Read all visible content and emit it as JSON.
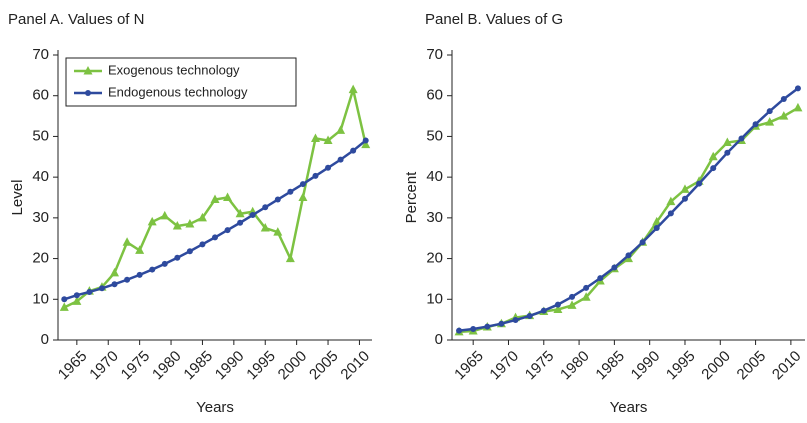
{
  "chart_data": [
    {
      "type": "line",
      "title": "Panel A. Values of N",
      "xlabel": "Years",
      "ylabel": "Level",
      "x": [
        1963,
        1965,
        1967,
        1969,
        1971,
        1973,
        1975,
        1977,
        1979,
        1981,
        1983,
        1985,
        1987,
        1989,
        1991,
        1993,
        1995,
        1997,
        1999,
        2001,
        2003,
        2005,
        2007,
        2009,
        2011
      ],
      "series": [
        {
          "name": "Exogenous technology",
          "color": "#7dc242",
          "marker": "triangle",
          "values": [
            8,
            9.5,
            12,
            13,
            16.5,
            24,
            22,
            29,
            30.5,
            28,
            28.5,
            30,
            34.5,
            35,
            31,
            31.5,
            27.5,
            26.5,
            20,
            35,
            49.5,
            49,
            51.5,
            61.5,
            48
          ]
        },
        {
          "name": "Endogenous technology",
          "color": "#2e4a9e",
          "marker": "circle",
          "values": [
            10,
            11,
            11.8,
            12.7,
            13.7,
            14.8,
            16,
            17.3,
            18.7,
            20.2,
            21.8,
            23.5,
            25.2,
            27,
            28.8,
            30.7,
            32.6,
            34.5,
            36.4,
            38.3,
            40.3,
            42.3,
            44.3,
            46.5,
            49
          ]
        }
      ],
      "xlim": [
        1962,
        2012
      ],
      "xticks": [
        1965,
        1970,
        1975,
        1980,
        1985,
        1990,
        1995,
        2000,
        2005,
        2010
      ],
      "ylim": [
        0,
        70
      ],
      "yticks": [
        0,
        10,
        20,
        30,
        40,
        50,
        60,
        70
      ],
      "legend": "upper left"
    },
    {
      "type": "line",
      "title": "Panel B. Values of G",
      "xlabel": "Years",
      "ylabel": "Percent",
      "x": [
        1963,
        1965,
        1967,
        1969,
        1971,
        1973,
        1975,
        1977,
        1979,
        1981,
        1983,
        1985,
        1987,
        1989,
        1991,
        1993,
        1995,
        1997,
        1999,
        2001,
        2003,
        2005,
        2007,
        2009,
        2011
      ],
      "series": [
        {
          "name": "Exogenous technology",
          "color": "#7dc242",
          "marker": "triangle",
          "values": [
            2,
            2.2,
            3.2,
            4,
            5.5,
            6,
            7,
            7.5,
            8.5,
            10.5,
            14.5,
            17.5,
            20,
            24,
            29,
            34,
            37,
            39,
            45,
            48.5,
            49,
            52.5,
            53.5,
            55,
            57
          ]
        },
        {
          "name": "Endogenous technology",
          "color": "#2e4a9e",
          "marker": "circle",
          "values": [
            2.3,
            2.7,
            3.3,
            4,
            4.9,
            5.9,
            7.2,
            8.7,
            10.6,
            12.8,
            15.2,
            17.8,
            20.8,
            24,
            27.5,
            31.1,
            34.7,
            38.4,
            42.2,
            46,
            49.5,
            53,
            56.2,
            59.2,
            61.8
          ]
        }
      ],
      "xlim": [
        1962,
        2012
      ],
      "xticks": [
        1965,
        1970,
        1975,
        1980,
        1985,
        1990,
        1995,
        2000,
        2005,
        2010
      ],
      "ylim": [
        0,
        70
      ],
      "yticks": [
        0,
        10,
        20,
        30,
        40,
        50,
        60,
        70
      ],
      "legend": "none"
    }
  ]
}
